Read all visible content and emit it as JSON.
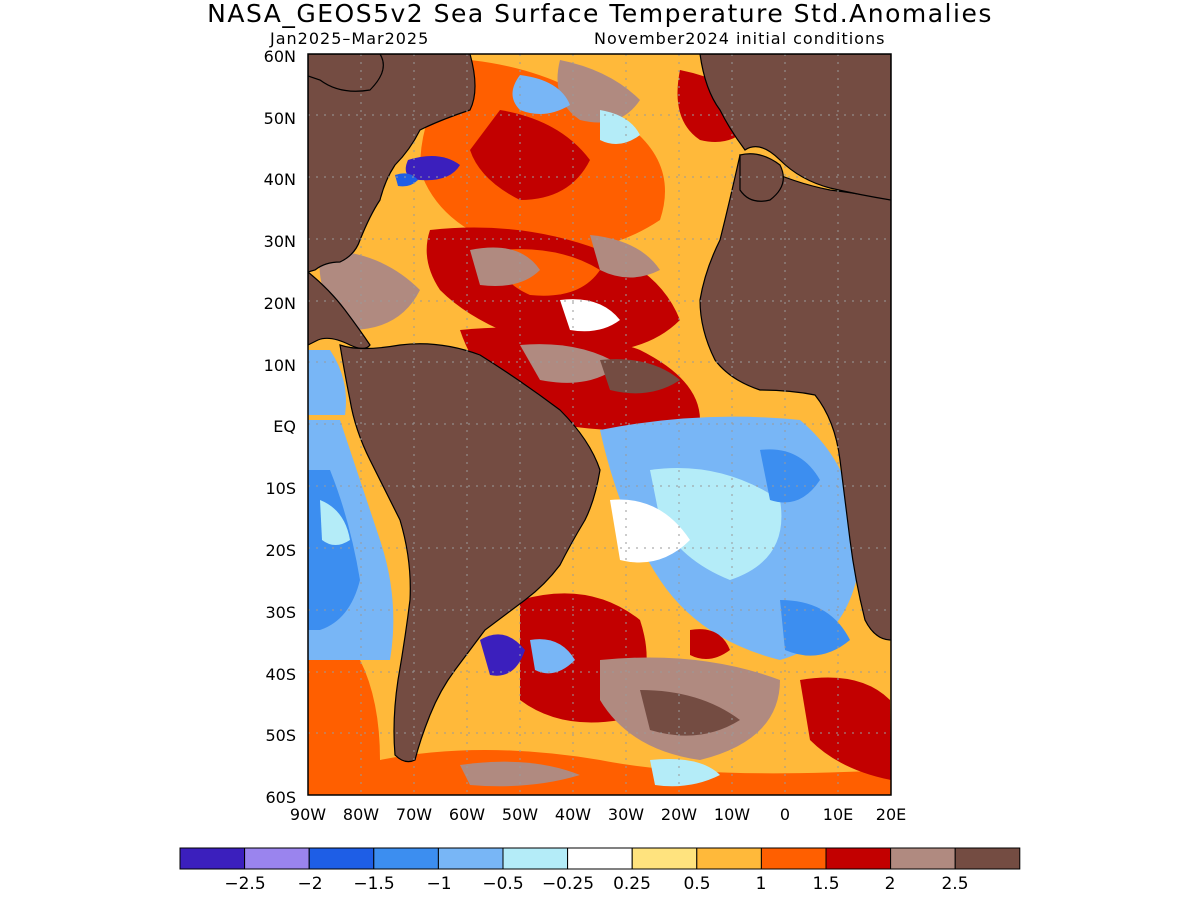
{
  "title": "NASA_GEOS5v2 Sea Surface Temperature Std.Anomalies",
  "subtitle_left": "Jan2025–Mar2025",
  "subtitle_right": "November2024 initial conditions",
  "lat_labels": [
    "60N",
    "50N",
    "40N",
    "30N",
    "20N",
    "10N",
    "EQ",
    "10S",
    "20S",
    "30S",
    "40S",
    "50S",
    "60S"
  ],
  "lon_labels": [
    "90W",
    "80W",
    "70W",
    "60W",
    "50W",
    "40W",
    "30W",
    "20W",
    "10W",
    "0",
    "10E",
    "20E"
  ],
  "colorbar": {
    "colors": [
      "#3b1fbd",
      "#9a84ee",
      "#1e5ee6",
      "#3c8ef0",
      "#78b6f6",
      "#b4ecf8",
      "#ffffff",
      "#ffe37e",
      "#ffb93a",
      "#ff5f00",
      "#c20000",
      "#b08a80",
      "#744c42"
    ],
    "labels": [
      "−2.5",
      "−2",
      "−1.5",
      "−1",
      "−0.5",
      "−0.25",
      "0.25",
      "0.5",
      "1",
      "1.5",
      "2",
      "2.5"
    ]
  },
  "colors": {
    "land": "#744c42",
    "ocean_base": "#ffb93a",
    "grid": "#9a9a9a"
  }
}
